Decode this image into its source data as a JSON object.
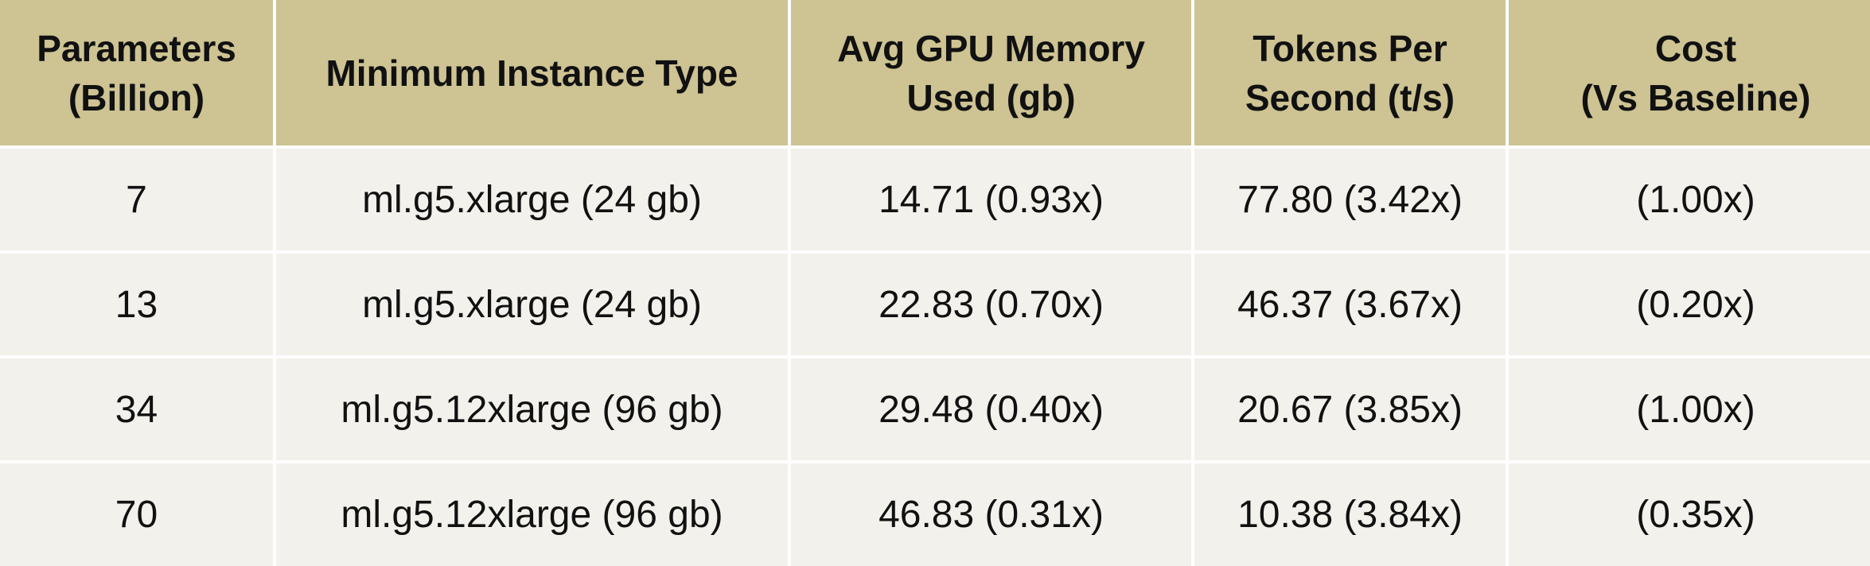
{
  "table": {
    "header": [
      "Parameters\n(Billion)",
      "Minimum Instance Type",
      "Avg GPU Memory\nUsed (gb)",
      "Tokens Per\nSecond (t/s)",
      "Cost\n(Vs Baseline)"
    ],
    "rows": [
      [
        "7",
        "ml.g5.xlarge (24 gb)",
        "14.71 (0.93x)",
        "77.80 (3.42x)",
        "(1.00x)"
      ],
      [
        "13",
        "ml.g5.xlarge (24 gb)",
        "22.83 (0.70x)",
        "46.37 (3.67x)",
        "(0.20x)"
      ],
      [
        "34",
        "ml.g5.12xlarge (96 gb)",
        "29.48 (0.40x)",
        "20.67 (3.85x)",
        "(1.00x)"
      ],
      [
        "70",
        "ml.g5.12xlarge (96 gb)",
        "46.83 (0.31x)",
        "10.38 (3.84x)",
        "(0.35x)"
      ]
    ]
  }
}
